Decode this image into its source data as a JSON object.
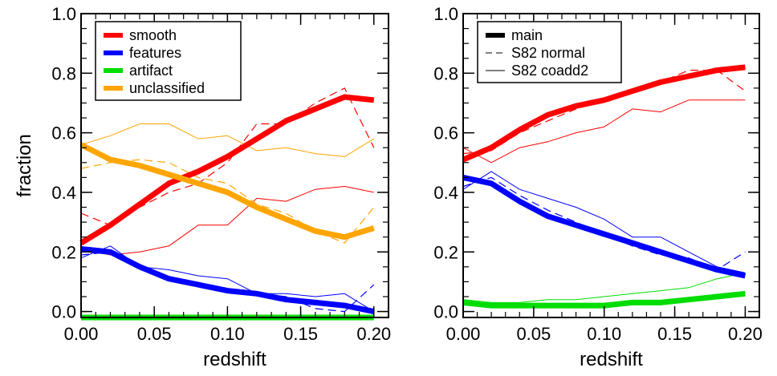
{
  "chart_data": [
    {
      "type": "line",
      "panel": "left",
      "xlabel": "redshift",
      "ylabel": "fraction",
      "xlim": [
        0.0,
        0.21
      ],
      "ylim": [
        -0.02,
        1.0
      ],
      "xticks": [
        "0.00",
        "0.05",
        "0.10",
        "0.15",
        "0.20"
      ],
      "yticks": [
        "0.0",
        "0.2",
        "0.4",
        "0.6",
        "0.8",
        "1.0"
      ],
      "grid": false,
      "legend": {
        "placement": "top-left",
        "entries": [
          "smooth",
          "features",
          "artifact",
          "unclassified"
        ]
      },
      "colors": {
        "smooth": "#ff0000",
        "features": "#0000ff",
        "artifact": "#00dd00",
        "unclassified": "#ffa500"
      },
      "x": [
        0.0,
        0.02,
        0.04,
        0.06,
        0.08,
        0.1,
        0.12,
        0.14,
        0.16,
        0.18,
        0.2
      ],
      "series": [
        {
          "name": "smooth",
          "style": "main",
          "values": [
            0.23,
            0.29,
            0.36,
            0.43,
            0.47,
            0.52,
            0.58,
            0.64,
            0.68,
            0.72,
            0.71
          ]
        },
        {
          "name": "features",
          "style": "main",
          "values": [
            0.21,
            0.2,
            0.15,
            0.11,
            0.09,
            0.07,
            0.06,
            0.04,
            0.03,
            0.02,
            0.0
          ]
        },
        {
          "name": "artifact",
          "style": "main",
          "values": [
            -0.02,
            -0.02,
            -0.02,
            -0.02,
            -0.02,
            -0.02,
            -0.02,
            -0.02,
            -0.02,
            -0.02,
            -0.02
          ]
        },
        {
          "name": "unclassified",
          "style": "main",
          "values": [
            0.56,
            0.51,
            0.49,
            0.46,
            0.43,
            0.4,
            0.35,
            0.31,
            0.27,
            0.25,
            0.28
          ]
        },
        {
          "name": "smooth",
          "style": "normal",
          "values": [
            0.33,
            0.29,
            0.35,
            0.4,
            0.43,
            0.5,
            0.63,
            0.63,
            0.7,
            0.75,
            0.55
          ]
        },
        {
          "name": "features",
          "style": "normal",
          "values": [
            0.19,
            0.2,
            0.15,
            0.11,
            0.09,
            0.07,
            0.06,
            0.05,
            0.01,
            0.0,
            0.09
          ]
        },
        {
          "name": "artifact",
          "style": "normal",
          "values": [
            -0.02,
            -0.02,
            -0.02,
            -0.02,
            -0.02,
            -0.02,
            -0.02,
            -0.02,
            -0.02,
            -0.02,
            -0.02
          ]
        },
        {
          "name": "unclassified",
          "style": "normal",
          "values": [
            0.48,
            0.5,
            0.51,
            0.5,
            0.45,
            0.43,
            0.36,
            0.33,
            0.27,
            0.23,
            0.35
          ]
        },
        {
          "name": "smooth",
          "style": "coadd2",
          "values": [
            0.21,
            0.19,
            0.2,
            0.22,
            0.29,
            0.29,
            0.38,
            0.37,
            0.41,
            0.42,
            0.4
          ]
        },
        {
          "name": "features",
          "style": "coadd2",
          "values": [
            0.18,
            0.22,
            0.15,
            0.14,
            0.12,
            0.11,
            0.06,
            0.06,
            0.05,
            0.06,
            0.0
          ]
        },
        {
          "name": "artifact",
          "style": "coadd2",
          "values": [
            -0.02,
            -0.02,
            -0.02,
            -0.02,
            -0.02,
            -0.02,
            -0.02,
            -0.02,
            -0.02,
            -0.02,
            -0.02
          ]
        },
        {
          "name": "unclassified",
          "style": "coadd2",
          "values": [
            0.56,
            0.59,
            0.63,
            0.63,
            0.58,
            0.59,
            0.54,
            0.55,
            0.53,
            0.52,
            0.58
          ]
        }
      ]
    },
    {
      "type": "line",
      "panel": "right",
      "xlabel": "redshift",
      "ylabel": "",
      "xlim": [
        0.0,
        0.21
      ],
      "ylim": [
        -0.02,
        1.0
      ],
      "xticks": [
        "0.00",
        "0.05",
        "0.10",
        "0.15",
        "0.20"
      ],
      "yticks": [
        "0.0",
        "0.2",
        "0.4",
        "0.6",
        "0.8",
        "1.0"
      ],
      "grid": false,
      "legend": {
        "placement": "top-left",
        "entries": [
          "main",
          "S82 normal",
          "S82 coadd2"
        ]
      },
      "colors": {
        "smooth": "#ff0000",
        "features": "#0000ff",
        "artifact": "#00dd00"
      },
      "x": [
        0.0,
        0.02,
        0.04,
        0.06,
        0.08,
        0.1,
        0.12,
        0.14,
        0.16,
        0.18,
        0.2
      ],
      "series": [
        {
          "name": "smooth",
          "style": "main",
          "values": [
            0.51,
            0.55,
            0.61,
            0.66,
            0.69,
            0.71,
            0.74,
            0.77,
            0.79,
            0.81,
            0.82
          ]
        },
        {
          "name": "features",
          "style": "main",
          "values": [
            0.45,
            0.43,
            0.37,
            0.32,
            0.29,
            0.26,
            0.23,
            0.2,
            0.17,
            0.14,
            0.12
          ]
        },
        {
          "name": "artifact",
          "style": "main",
          "values": [
            0.03,
            0.02,
            0.02,
            0.02,
            0.02,
            0.02,
            0.03,
            0.03,
            0.04,
            0.05,
            0.06
          ]
        },
        {
          "name": "smooth",
          "style": "normal",
          "values": [
            0.53,
            0.54,
            0.6,
            0.64,
            0.68,
            0.71,
            0.74,
            0.77,
            0.81,
            0.81,
            0.74
          ]
        },
        {
          "name": "features",
          "style": "normal",
          "values": [
            0.42,
            0.45,
            0.39,
            0.34,
            0.3,
            0.26,
            0.22,
            0.19,
            0.18,
            0.14,
            0.2
          ]
        },
        {
          "name": "artifact",
          "style": "normal",
          "values": [
            0.03,
            0.02,
            0.02,
            0.02,
            0.02,
            0.02,
            0.03,
            0.03,
            0.04,
            0.05,
            0.06
          ]
        },
        {
          "name": "smooth",
          "style": "coadd2",
          "values": [
            0.55,
            0.5,
            0.55,
            0.57,
            0.6,
            0.62,
            0.68,
            0.67,
            0.71,
            0.71,
            0.71
          ]
        },
        {
          "name": "features",
          "style": "coadd2",
          "values": [
            0.41,
            0.47,
            0.41,
            0.38,
            0.35,
            0.31,
            0.25,
            0.25,
            0.2,
            0.15,
            0.13
          ]
        },
        {
          "name": "artifact",
          "style": "coadd2",
          "values": [
            0.04,
            0.03,
            0.03,
            0.04,
            0.04,
            0.05,
            0.06,
            0.07,
            0.08,
            0.11,
            0.13
          ]
        }
      ]
    }
  ]
}
